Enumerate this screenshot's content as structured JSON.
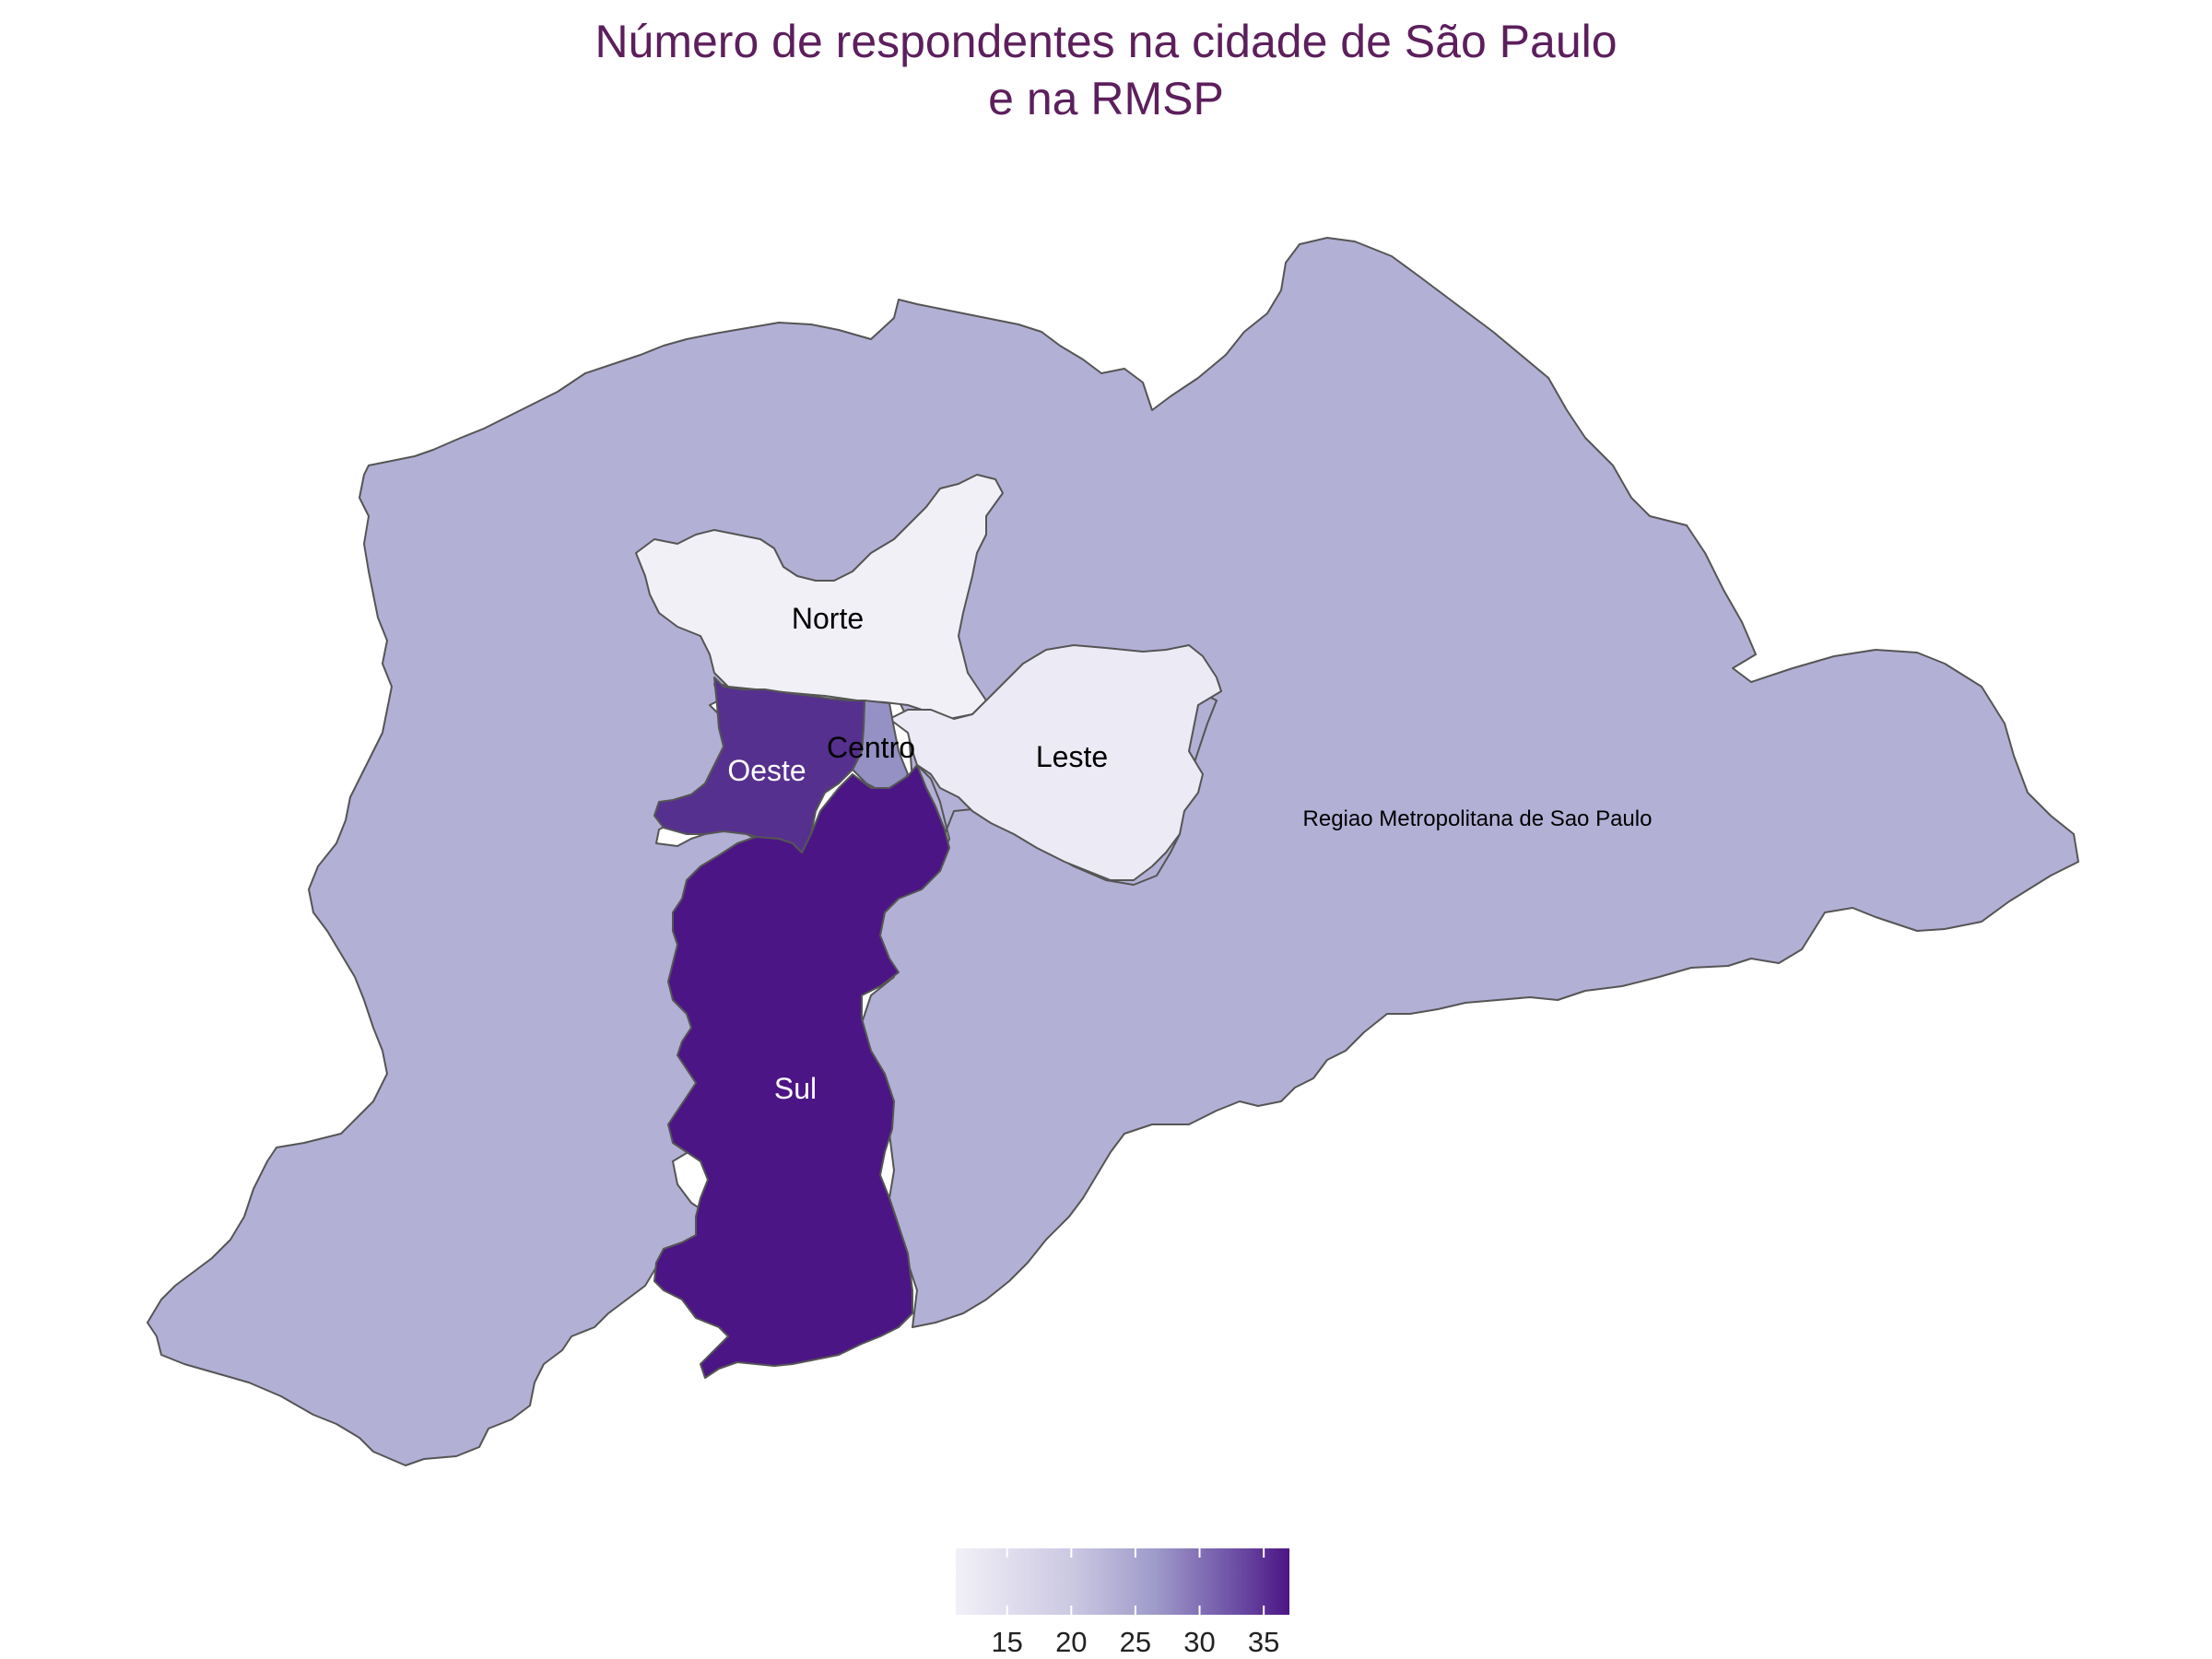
{
  "title_line1": "Número de respondentes na cidade de São Paulo",
  "title_line2": "e na RMSP",
  "colors": {
    "title": "#5c1f5c",
    "scale_low": "#f2f0f7",
    "scale_mid": "#b3b0d6",
    "scale_high": "#4c1585",
    "border": "#555555"
  },
  "scale": {
    "min": 11,
    "max": 37,
    "breaks": [
      15,
      20,
      25,
      30,
      35
    ]
  },
  "regions": [
    {
      "id": "rmsp",
      "name": "Regiao Metropolitana de Sao Paulo",
      "value": 24,
      "label_color": "#000000"
    },
    {
      "id": "norte",
      "name": "Norte",
      "value": 12,
      "label_color": "#000000"
    },
    {
      "id": "leste",
      "name": "Leste",
      "value": 13,
      "label_color": "#000000"
    },
    {
      "id": "centro",
      "name": "Centro",
      "value": 27,
      "label_color": "#000000"
    },
    {
      "id": "oeste",
      "name": "Oeste",
      "value": 33,
      "label_color": "#ffffff"
    },
    {
      "id": "sul",
      "name": "Sul",
      "value": 37,
      "label_color": "#ffffff"
    }
  ]
}
